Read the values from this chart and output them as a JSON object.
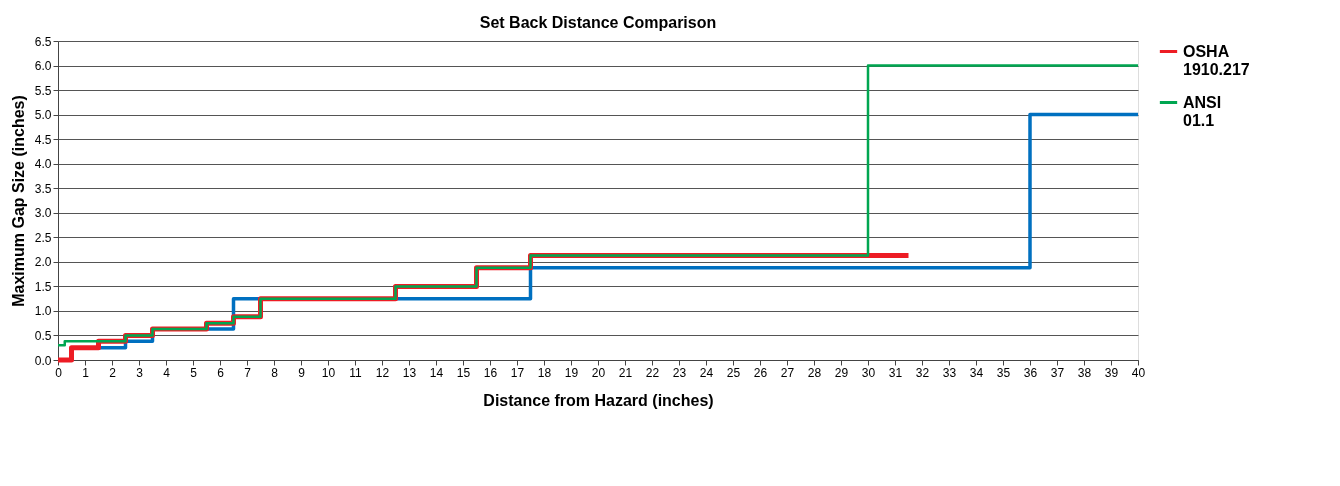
{
  "chart_data": {
    "type": "step",
    "title": "Set Back Distance Comparison",
    "xlabel": "Distance from Hazard (inches)",
    "ylabel": "Maximum Gap Size (inches)",
    "xlim": [
      0,
      40
    ],
    "xticks": [
      0,
      1,
      2,
      3,
      4,
      5,
      6,
      7,
      8,
      9,
      10,
      11,
      12,
      13,
      14,
      15,
      16,
      17,
      18,
      19,
      20,
      21,
      22,
      23,
      24,
      25,
      26,
      27,
      28,
      29,
      30,
      31,
      32,
      33,
      34,
      35,
      36,
      37,
      38,
      39,
      40
    ],
    "ylim": [
      0,
      6.5
    ],
    "yticks": [
      {
        "value": 0,
        "label": "0.0"
      },
      {
        "value": 0.5,
        "label": "0.5"
      },
      {
        "value": 1,
        "label": "1.0"
      },
      {
        "value": 1.5,
        "label": "1.5"
      },
      {
        "value": 2,
        "label": "2.0"
      },
      {
        "value": 2.5,
        "label": "2.5"
      },
      {
        "value": 3,
        "label": "3.0"
      },
      {
        "value": 3.5,
        "label": "3.5"
      },
      {
        "value": 4,
        "label": "4.0"
      },
      {
        "value": 4.5,
        "label": "4.5"
      },
      {
        "value": 5,
        "label": "5.0"
      },
      {
        "value": 5.5,
        "label": "5.5"
      },
      {
        "value": 6,
        "label": "6.0"
      },
      {
        "value": 6.5,
        "label": "6.5"
      }
    ],
    "grid": "y",
    "legend": "right",
    "marker": "none",
    "line_style": "solid",
    "series": [
      {
        "color": "#0070c0",
        "x": [
          1.5,
          2.5,
          3.5,
          6.5,
          17.5,
          36,
          40
        ],
        "values": [
          0.25,
          0.38,
          0.63,
          1.25,
          1.88,
          5.0,
          5.0
        ]
      },
      {
        "name": "OSHA 1910.217",
        "color": "#ed1c24",
        "x": [
          0,
          0.5,
          1.5,
          2.5,
          3.5,
          5.5,
          6.5,
          7.5,
          12.5,
          15.5,
          17.5,
          31.5
        ],
        "values": [
          0,
          0.25,
          0.38,
          0.5,
          0.63,
          0.75,
          0.88,
          1.25,
          1.5,
          1.88,
          2.13,
          2.13
        ]
      },
      {
        "name": "ANSI 01.1",
        "color": "#00a651",
        "x": [
          0,
          0.25,
          2.5,
          3.5,
          5.5,
          6.5,
          7.5,
          12.5,
          15.5,
          17.5,
          30,
          40
        ],
        "values": [
          0.3,
          0.38,
          0.5,
          0.63,
          0.75,
          0.88,
          1.25,
          1.5,
          1.88,
          2.13,
          6.0,
          6.0
        ]
      }
    ]
  }
}
